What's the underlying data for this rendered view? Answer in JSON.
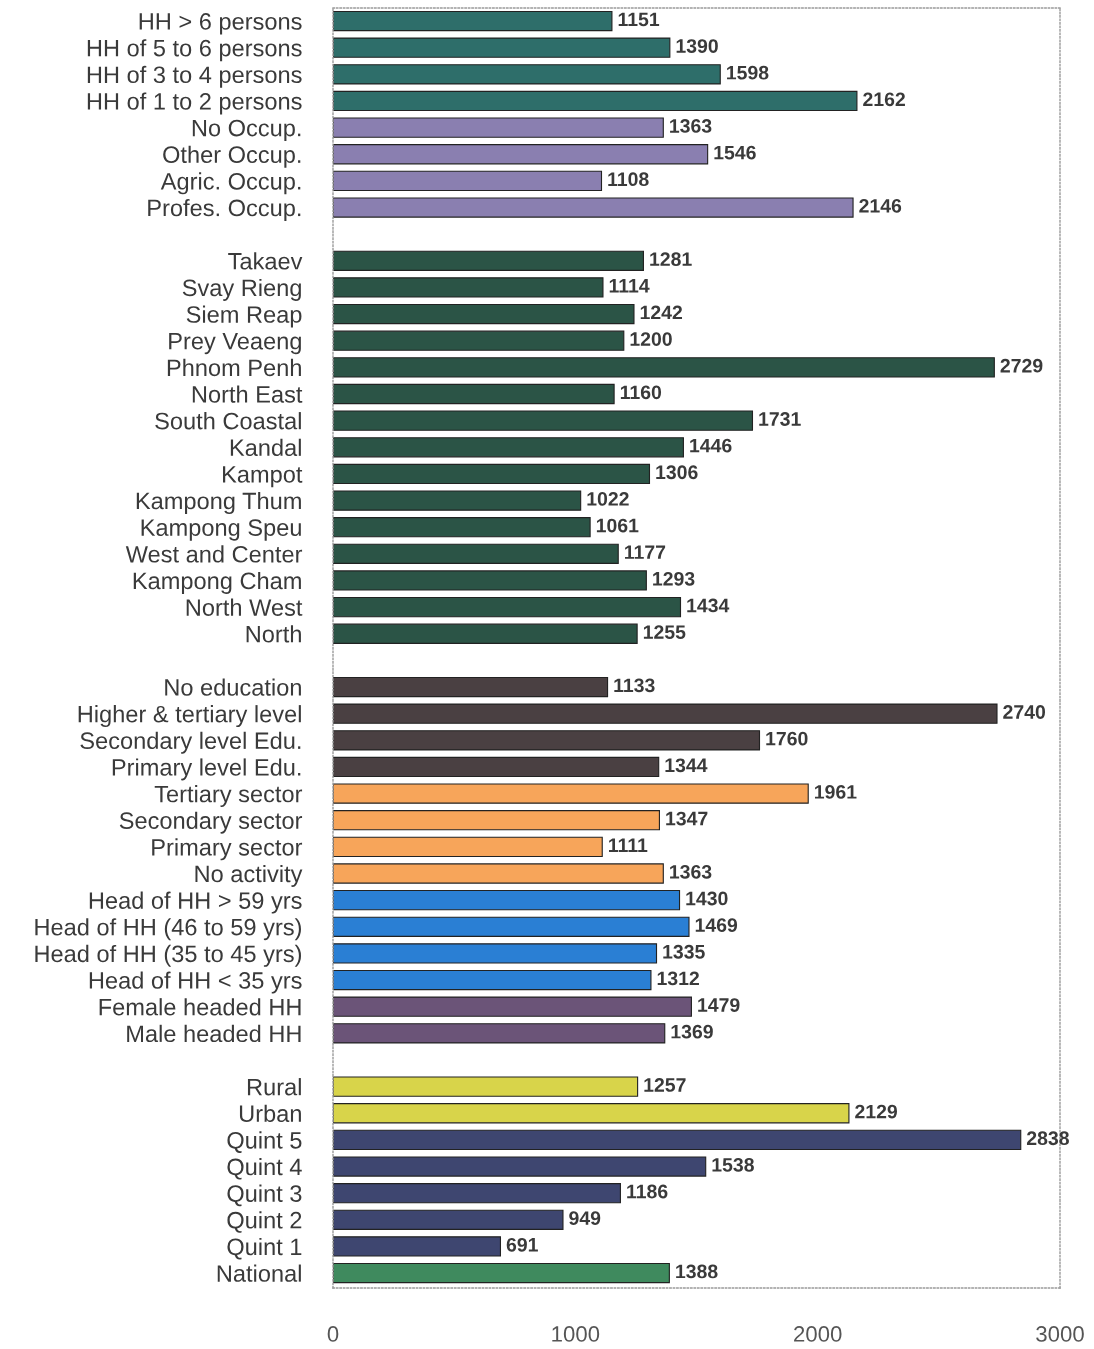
{
  "chart_data": {
    "type": "bar",
    "orientation": "horizontal",
    "categories": [
      "HH > 6 persons",
      "HH of 5 to 6 persons",
      "HH of 3 to 4 persons",
      "HH of 1 to 2 persons",
      "No Occup.",
      "Other Occup.",
      "Agric. Occup.",
      "Profes. Occup.",
      null,
      "Takaev",
      "Svay Rieng",
      "Siem Reap",
      "Prey Veaeng",
      "Phnom Penh",
      "North East",
      "South Coastal",
      "Kandal",
      "Kampot",
      "Kampong Thum",
      "Kampong Speu",
      "West and Center",
      "Kampong Cham",
      "North West",
      "North",
      null,
      "No education",
      "Higher & tertiary level",
      "Secondary level Edu.",
      "Primary level Edu.",
      "Tertiary sector",
      "Secondary sector",
      "Primary sector",
      "No activity",
      "Head of HH > 59 yrs",
      "Head of HH (46 to 59 yrs)",
      "Head of HH (35 to 45 yrs)",
      "Head of HH < 35 yrs",
      "Female headed HH",
      "Male headed HH",
      null,
      "Rural",
      "Urban",
      "Quint 5",
      "Quint 4",
      "Quint 3",
      "Quint 2",
      "Quint 1",
      "National"
    ],
    "values": [
      1151,
      1390,
      1598,
      2162,
      1363,
      1546,
      1108,
      2146,
      null,
      1281,
      1114,
      1242,
      1200,
      2729,
      1160,
      1731,
      1446,
      1306,
      1022,
      1061,
      1177,
      1293,
      1434,
      1255,
      null,
      1133,
      2740,
      1760,
      1344,
      1961,
      1347,
      1111,
      1363,
      1430,
      1469,
      1335,
      1312,
      1479,
      1369,
      null,
      1257,
      2129,
      2838,
      1538,
      1186,
      949,
      691,
      1388
    ],
    "colors": [
      "#2e6e6a",
      "#2e6e6a",
      "#2e6e6a",
      "#2e6e6a",
      "#8a7fb0",
      "#8a7fb0",
      "#8a7fb0",
      "#8a7fb0",
      null,
      "#2b5446",
      "#2b5446",
      "#2b5446",
      "#2b5446",
      "#2b5446",
      "#2b5446",
      "#2b5446",
      "#2b5446",
      "#2b5446",
      "#2b5446",
      "#2b5446",
      "#2b5446",
      "#2b5446",
      "#2b5446",
      "#2b5446",
      null,
      "#4a4042",
      "#4a4042",
      "#4a4042",
      "#4a4042",
      "#f7a55a",
      "#f7a55a",
      "#f7a55a",
      "#f7a55a",
      "#2a7fd4",
      "#2a7fd4",
      "#2a7fd4",
      "#2a7fd4",
      "#6b5478",
      "#6b5478",
      null,
      "#d8d44a",
      "#d8d44a",
      "#3e4670",
      "#3e4670",
      "#3e4670",
      "#3e4670",
      "#3e4670",
      "#3f8a5e"
    ],
    "xlim": [
      0,
      3000
    ],
    "xticks": [
      0,
      1000,
      2000,
      3000
    ],
    "grid": false,
    "data_labels": true
  }
}
